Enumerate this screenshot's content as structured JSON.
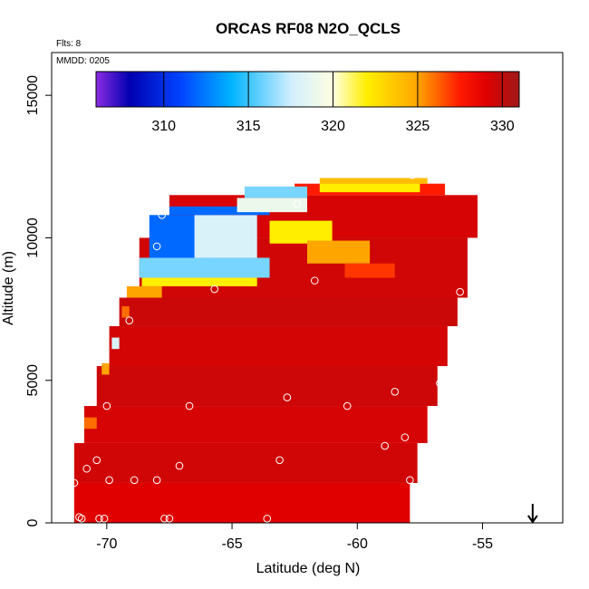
{
  "chart_data": {
    "type": "heatmap",
    "title": "ORCAS RF08 N2O_QCLS",
    "annotations": [
      "Flts: 8",
      "MMDD: 0205"
    ],
    "xlabel": "Latitude (deg N)",
    "ylabel": "Altitude (m)",
    "xlim": [
      -72.2,
      -51.8
    ],
    "ylim": [
      0,
      16500
    ],
    "x_ticks": [
      {
        "value": -70,
        "label": "-70"
      },
      {
        "value": -65,
        "label": "-65"
      },
      {
        "value": -60,
        "label": "-60"
      },
      {
        "value": -55,
        "label": "-55"
      }
    ],
    "y_ticks": [
      {
        "value": 0,
        "label": "0"
      },
      {
        "value": 5000,
        "label": "5000"
      },
      {
        "value": 10000,
        "label": "10000"
      },
      {
        "value": 15000,
        "label": "15000"
      }
    ],
    "colorbar": {
      "range": [
        306,
        331
      ],
      "ticks": [
        {
          "value": 310,
          "label": "310"
        },
        {
          "value": 315,
          "label": "315"
        },
        {
          "value": 320,
          "label": "320"
        },
        {
          "value": 325,
          "label": "325"
        },
        {
          "value": 330,
          "label": "330"
        }
      ],
      "stops": [
        {
          "value": 306,
          "color": "#8a2be2"
        },
        {
          "value": 308,
          "color": "#0000b0"
        },
        {
          "value": 311,
          "color": "#0044ff"
        },
        {
          "value": 314,
          "color": "#00b4ff"
        },
        {
          "value": 317.5,
          "color": "#d0eeff"
        },
        {
          "value": 320,
          "color": "#ffffe0"
        },
        {
          "value": 322,
          "color": "#ffee00"
        },
        {
          "value": 325,
          "color": "#ffa500"
        },
        {
          "value": 327.5,
          "color": "#ff1a00"
        },
        {
          "value": 329,
          "color": "#e00000"
        },
        {
          "value": 331,
          "color": "#a01818"
        }
      ]
    },
    "field_blocks": [
      {
        "lat": [
          -71.3,
          -57.9
        ],
        "alt": [
          0,
          1400
        ],
        "value": 329
      },
      {
        "lat": [
          -71.3,
          -57.6
        ],
        "alt": [
          1400,
          2800
        ],
        "value": 329.5
      },
      {
        "lat": [
          -70.9,
          -57.2
        ],
        "alt": [
          2800,
          4100
        ],
        "value": 329.3
      },
      {
        "lat": [
          -70.4,
          -56.8
        ],
        "alt": [
          4100,
          5500
        ],
        "value": 329.6
      },
      {
        "lat": [
          -69.9,
          -56.4
        ],
        "alt": [
          5500,
          6900
        ],
        "value": 329.4
      },
      {
        "lat": [
          -69.5,
          -56.0
        ],
        "alt": [
          6900,
          7900
        ],
        "value": 329.7
      },
      {
        "lat": [
          -68.7,
          -55.6
        ],
        "alt": [
          7900,
          10000
        ],
        "value": 329.5
      },
      {
        "lat": [
          -67.5,
          -55.2
        ],
        "alt": [
          10000,
          11500
        ],
        "value": 329.3
      },
      {
        "lat": [
          -62.5,
          -56.5
        ],
        "alt": [
          11500,
          11900
        ],
        "value": 327.5
      },
      {
        "lat": [
          -61.5,
          -57.2
        ],
        "alt": [
          11900,
          12100
        ],
        "value": 324
      }
    ],
    "field_patches": [
      {
        "lat": [
          -69.2,
          -67.8
        ],
        "alt": [
          7900,
          8300
        ],
        "value": 325
      },
      {
        "lat": [
          -68.6,
          -64.0
        ],
        "alt": [
          8300,
          8600
        ],
        "value": 322
      },
      {
        "lat": [
          -68.7,
          -63.5
        ],
        "alt": [
          8600,
          9300
        ],
        "value": 316
      },
      {
        "lat": [
          -68.3,
          -65.8
        ],
        "alt": [
          9300,
          10800
        ],
        "value": 312
      },
      {
        "lat": [
          -66.5,
          -64.0
        ],
        "alt": [
          9300,
          10800
        ],
        "value": 318
      },
      {
        "lat": [
          -67.5,
          -63.5
        ],
        "alt": [
          10800,
          11100
        ],
        "value": 312
      },
      {
        "lat": [
          -64.8,
          -62.0
        ],
        "alt": [
          10900,
          11400
        ],
        "value": 319
      },
      {
        "lat": [
          -63.5,
          -61.0
        ],
        "alt": [
          9800,
          10600
        ],
        "value": 322
      },
      {
        "lat": [
          -62.0,
          -59.5
        ],
        "alt": [
          9100,
          9900
        ],
        "value": 325
      },
      {
        "lat": [
          -60.5,
          -58.5
        ],
        "alt": [
          8600,
          9100
        ],
        "value": 327
      },
      {
        "lat": [
          -64.5,
          -62.0
        ],
        "alt": [
          11400,
          11800
        ],
        "value": 316
      },
      {
        "lat": [
          -61.5,
          -57.5
        ],
        "alt": [
          11600,
          11900
        ],
        "value": 322
      },
      {
        "lat": [
          -70.9,
          -70.4
        ],
        "alt": [
          3300,
          3700
        ],
        "value": 326
      },
      {
        "lat": [
          -70.2,
          -69.9
        ],
        "alt": [
          5200,
          5600
        ],
        "value": 325
      },
      {
        "lat": [
          -69.8,
          -69.5
        ],
        "alt": [
          6100,
          6500
        ],
        "value": 318
      },
      {
        "lat": [
          -69.4,
          -69.1
        ],
        "alt": [
          7200,
          7600
        ],
        "value": 326
      }
    ],
    "sample_points": [
      {
        "lat": -71.3,
        "alt": 1400
      },
      {
        "lat": -71.1,
        "alt": 200
      },
      {
        "lat": -71.0,
        "alt": 150
      },
      {
        "lat": -70.8,
        "alt": 1900
      },
      {
        "lat": -70.4,
        "alt": 2200
      },
      {
        "lat": -70.3,
        "alt": 150
      },
      {
        "lat": -70.1,
        "alt": 150
      },
      {
        "lat": -69.9,
        "alt": 1500
      },
      {
        "lat": -70.0,
        "alt": 4100
      },
      {
        "lat": -68.9,
        "alt": 1500
      },
      {
        "lat": -68.0,
        "alt": 1500
      },
      {
        "lat": -67.7,
        "alt": 150
      },
      {
        "lat": -67.5,
        "alt": 150
      },
      {
        "lat": -67.1,
        "alt": 2000
      },
      {
        "lat": -66.7,
        "alt": 4100
      },
      {
        "lat": -69.1,
        "alt": 7100
      },
      {
        "lat": -65.7,
        "alt": 8200
      },
      {
        "lat": -68.0,
        "alt": 9700
      },
      {
        "lat": -67.8,
        "alt": 10800
      },
      {
        "lat": -63.6,
        "alt": 150
      },
      {
        "lat": -63.1,
        "alt": 2200
      },
      {
        "lat": -62.8,
        "alt": 4400
      },
      {
        "lat": -61.7,
        "alt": 8500
      },
      {
        "lat": -62.4,
        "alt": 11200
      },
      {
        "lat": -60.4,
        "alt": 4100
      },
      {
        "lat": -58.9,
        "alt": 2700
      },
      {
        "lat": -58.5,
        "alt": 4600
      },
      {
        "lat": -58.1,
        "alt": 3000
      },
      {
        "lat": -57.9,
        "alt": 1500
      },
      {
        "lat": -57.7,
        "alt": 350
      },
      {
        "lat": -57.6,
        "alt": 350
      },
      {
        "lat": -56.7,
        "alt": 4900
      },
      {
        "lat": -55.9,
        "alt": 8100
      },
      {
        "lat": -55.1,
        "alt": 11600
      },
      {
        "lat": -57.8,
        "alt": 12200
      }
    ],
    "arrow_marker": {
      "lat": -53.0,
      "direction": "down"
    },
    "grid": false
  }
}
